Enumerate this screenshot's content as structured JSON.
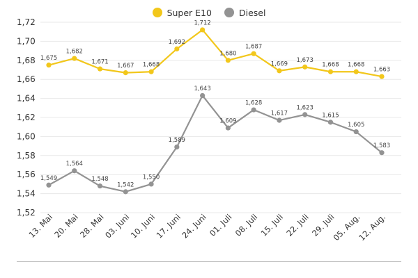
{
  "colors": {
    "super_e10": "#f2c71b",
    "diesel": "#939393",
    "grid": "#e8e8e8",
    "text": "#333333"
  },
  "chart_data": {
    "type": "line",
    "title": "",
    "xlabel": "",
    "ylabel": "",
    "categories": [
      "13. Mai",
      "20. Mai",
      "28. Mai",
      "03. Juni",
      "10. Juni",
      "17. Juni",
      "24. Juni",
      "01. Juli",
      "08. Juli",
      "15. Juli",
      "22. Juli",
      "29. Juli",
      "05. Aug.",
      "12. Aug."
    ],
    "yticks": [
      "1,52",
      "1,54",
      "1,56",
      "1,58",
      "1,60",
      "1,62",
      "1,64",
      "1,66",
      "1,68",
      "1,70",
      "1,72"
    ],
    "ylim": [
      1.52,
      1.72
    ],
    "grid": true,
    "legend_position": "top-center",
    "series": [
      {
        "name": "Super E10",
        "color": "#f2c71b",
        "values": [
          1.675,
          1.682,
          1.671,
          1.667,
          1.668,
          1.692,
          1.712,
          1.68,
          1.687,
          1.669,
          1.673,
          1.668,
          1.668,
          1.663
        ],
        "labels": [
          "1,675",
          "1,682",
          "1,671",
          "1,667",
          "1,668",
          "1,692",
          "1,712",
          "1,680",
          "1,687",
          "1,669",
          "1,673",
          "1,668",
          "1,668",
          "1,663"
        ]
      },
      {
        "name": "Diesel",
        "color": "#939393",
        "values": [
          1.549,
          1.564,
          1.548,
          1.542,
          1.55,
          1.589,
          1.643,
          1.609,
          1.628,
          1.617,
          1.623,
          1.615,
          1.605,
          1.583
        ],
        "labels": [
          "1,549",
          "1,564",
          "1,548",
          "1,542",
          "1,550",
          "1,589",
          "1,643",
          "1,609",
          "1,628",
          "1,617",
          "1,623",
          "1,615",
          "1,605",
          "1,583"
        ]
      }
    ]
  }
}
